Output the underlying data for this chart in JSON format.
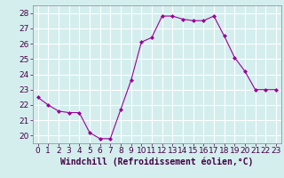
{
  "x": [
    0,
    1,
    2,
    3,
    4,
    5,
    6,
    7,
    8,
    9,
    10,
    11,
    12,
    13,
    14,
    15,
    16,
    17,
    18,
    19,
    20,
    21,
    22,
    23
  ],
  "y": [
    22.5,
    22.0,
    21.6,
    21.5,
    21.5,
    20.2,
    19.8,
    19.8,
    21.7,
    23.6,
    26.1,
    26.4,
    27.8,
    27.8,
    27.6,
    27.5,
    27.5,
    27.8,
    26.5,
    25.1,
    24.2,
    23.0,
    23.0,
    23.0
  ],
  "xlabel": "Windchill (Refroidissement éolien,°C)",
  "xlim": [
    -0.5,
    23.5
  ],
  "ylim": [
    19.5,
    28.5
  ],
  "yticks": [
    20,
    21,
    22,
    23,
    24,
    25,
    26,
    27,
    28
  ],
  "xticks": [
    0,
    1,
    2,
    3,
    4,
    5,
    6,
    7,
    8,
    9,
    10,
    11,
    12,
    13,
    14,
    15,
    16,
    17,
    18,
    19,
    20,
    21,
    22,
    23
  ],
  "line_color": "#990099",
  "marker": "D",
  "marker_size": 2.0,
  "bg_color": "#d4eeee",
  "grid_color": "#ffffff",
  "tick_label_fontsize": 6.5,
  "xlabel_fontsize": 7.0
}
